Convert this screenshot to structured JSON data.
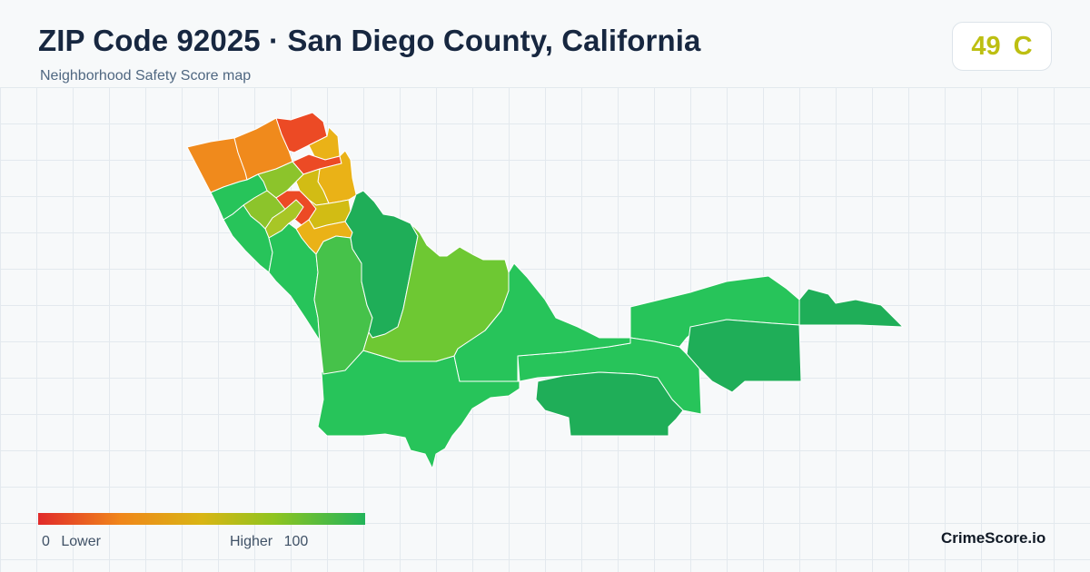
{
  "header": {
    "title": "ZIP Code 92025 · San Diego County, California",
    "subtitle": "Neighborhood Safety Score map"
  },
  "score": {
    "value": "49",
    "grade": "C",
    "color": "#bdbf12"
  },
  "legend": {
    "min_value": "0",
    "min_label": "Lower",
    "max_label": "Higher",
    "max_value": "100",
    "colors": [
      "#e12a2a",
      "#f0861a",
      "#d9b514",
      "#8fc41f",
      "#22b45a"
    ]
  },
  "brand": "CrimeScore.io",
  "map_colors": {
    "red": "#ec4a25",
    "orange": "#f08a1c",
    "amber": "#eab217",
    "yellow": "#d2bc14",
    "yellow_green": "#a8c626",
    "lime": "#8cc42b",
    "light_green": "#6ec833",
    "green": "#46c24a",
    "bright_green": "#27c45a",
    "dark_green": "#1fae58"
  }
}
